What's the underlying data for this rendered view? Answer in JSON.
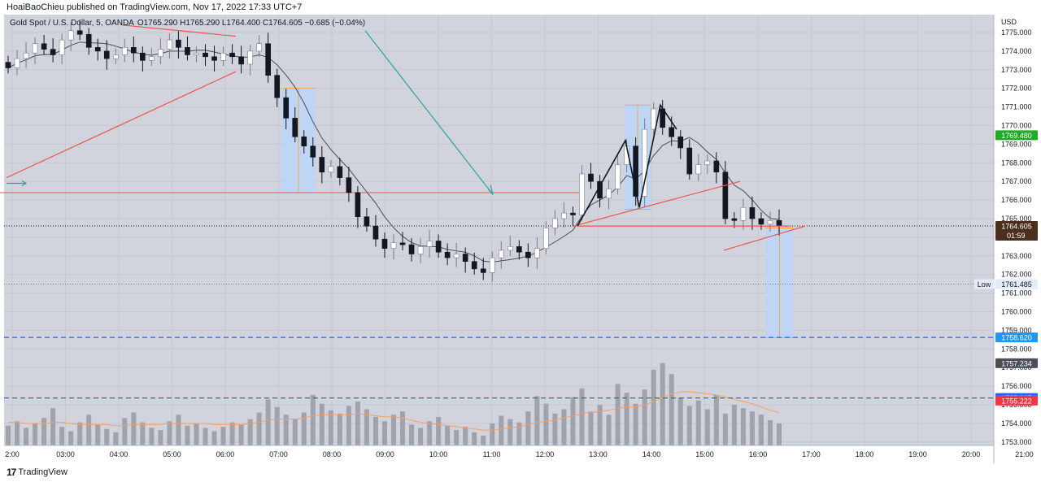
{
  "header": {
    "published": "HoaiBaoChieu published on TradingView.com, Nov 17, 2022 17:33 UTC+7"
  },
  "legend": {
    "symbol": "Gold Spot / U.S. Dollar, 5, OANDA",
    "ohlc": "O1765.290 H1765.290 L1764.400 C1764.605 −0.685 (−0.04%)"
  },
  "footer": {
    "brand": "TradingView",
    "logo": "tradingview-logo-icon"
  },
  "colors": {
    "plot_bg": "#d1d4dc",
    "candle": "#131722",
    "volume": "#a0a3ab",
    "ma_price": "#4a4d55",
    "ma_volume": "#f5a061",
    "red_line": "#ef5350",
    "teal_line": "#26a69a",
    "blue_dashed": "#2962ff",
    "box_fill": "#bbd6f5",
    "box_line": "#f2a64a"
  },
  "chart_data": {
    "type": "candlestick",
    "y_unit": "USD",
    "ylim": [
      1752.5,
      1775.6
    ],
    "y_ticks": [
      "1775.000",
      "1774.000",
      "1773.000",
      "1772.000",
      "1771.000",
      "1770.000",
      "1769.000",
      "1768.000",
      "1767.000",
      "1766.000",
      "1765.000",
      "1764.000",
      "1763.000",
      "1762.000",
      "1761.000",
      "1760.000",
      "1759.000",
      "1758.000",
      "1757.000",
      "1756.000",
      "1755.000",
      "1754.000",
      "1753.000"
    ],
    "x_ticks": [
      "2:00",
      "03:00",
      "04:00",
      "05:00",
      "06:00",
      "07:00",
      "08:00",
      "09:00",
      "10:00",
      "11:00",
      "12:00",
      "13:00",
      "14:00",
      "15:00",
      "16:00",
      "17:00",
      "18:00",
      "19:00",
      "20:00",
      "21:00"
    ],
    "close_path": [
      1773.1,
      1773.6,
      1773.9,
      1774.4,
      1774.1,
      1773.8,
      1774.6,
      1775.1,
      1774.9,
      1774.2,
      1774.0,
      1773.6,
      1773.8,
      1774.2,
      1773.9,
      1773.5,
      1773.7,
      1774.1,
      1774.6,
      1774.2,
      1773.8,
      1773.9,
      1773.7,
      1773.5,
      1773.9,
      1773.7,
      1773.3,
      1774.0,
      1774.4,
      1772.7,
      1771.5,
      1770.4,
      1769.4,
      1768.9,
      1768.3,
      1767.5,
      1767.8,
      1767.2,
      1766.4,
      1765.1,
      1764.6,
      1763.9,
      1763.4,
      1763.7,
      1763.6,
      1763.1,
      1763.5,
      1763.8,
      1763.2,
      1762.9,
      1763.1,
      1762.7,
      1762.3,
      1762.1,
      1762.9,
      1763.3,
      1763.5,
      1763.2,
      1762.9,
      1763.4,
      1764.5,
      1765.0,
      1765.3,
      1765.2,
      1767.4,
      1767.0,
      1766.1,
      1766.6,
      1767.9,
      1768.9,
      1766.2,
      1769.8,
      1770.9,
      1769.9,
      1769.4,
      1768.8,
      1767.4,
      1767.9,
      1768.1,
      1767.5,
      1765.0,
      1764.9,
      1765.6,
      1765.0,
      1764.7,
      1764.9,
      1764.6
    ],
    "volume": {
      "ylim": [
        0,
        100
      ],
      "values": [
        18,
        22,
        16,
        20,
        25,
        34,
        17,
        13,
        21,
        28,
        19,
        15,
        12,
        25,
        30,
        21,
        16,
        14,
        22,
        28,
        18,
        20,
        16,
        13,
        17,
        21,
        19,
        24,
        30,
        42,
        35,
        28,
        24,
        30,
        46,
        38,
        32,
        29,
        36,
        40,
        33,
        26,
        22,
        28,
        31,
        19,
        16,
        22,
        26,
        18,
        14,
        17,
        12,
        9,
        20,
        27,
        24,
        21,
        31,
        45,
        38,
        29,
        33,
        44,
        52,
        31,
        37,
        28,
        56,
        48,
        38,
        51,
        69,
        75,
        65,
        43,
        36,
        41,
        33,
        46,
        29,
        37,
        34,
        31,
        28,
        23,
        20
      ],
      "ma_values": [
        21,
        21,
        20,
        20,
        20,
        21,
        21,
        20,
        19,
        19,
        19,
        19,
        18,
        18,
        19,
        19,
        19,
        19,
        20,
        20,
        20,
        20,
        20,
        19,
        19,
        19,
        19,
        20,
        21,
        23,
        24,
        24,
        24,
        25,
        27,
        28,
        28,
        28,
        28,
        29,
        28,
        27,
        26,
        26,
        25,
        23,
        21,
        20,
        19,
        18,
        17,
        16,
        15,
        14,
        14,
        15,
        16,
        17,
        19,
        21,
        22,
        23,
        25,
        27,
        29,
        30,
        31,
        32,
        34,
        35,
        35,
        37,
        40,
        44,
        47,
        49,
        49,
        48,
        47,
        46,
        44,
        42,
        40,
        38,
        35,
        32,
        30
      ]
    },
    "price_labels": [
      {
        "label": "1769.480",
        "value": 1769.48,
        "color": "#22ab24"
      },
      {
        "label": "1764.605",
        "value": 1764.605,
        "color": "#4b2e1b",
        "sub": "01:59"
      },
      {
        "label": "1761.485",
        "value": 1761.485,
        "tag": "Low",
        "color": "#e4ecf8"
      },
      {
        "label": "1758.620",
        "value": 1758.62,
        "color": "#2196f3"
      },
      {
        "label": "1757.234",
        "value": 1757.234,
        "color": "#4c4f57"
      },
      {
        "label": "1755.367",
        "value": 1755.367,
        "color": "#2962ff"
      },
      {
        "label": "1755.222",
        "value": 1755.222,
        "color": "#f23645"
      }
    ],
    "horizontal_lines": [
      {
        "name": "red-level",
        "value": 1766.4,
        "x_from": 0,
        "x_to": 715
      },
      {
        "name": "last-price",
        "value": 1764.605,
        "style": "dotted"
      },
      {
        "name": "low",
        "value": 1761.485,
        "style": "dotted"
      },
      {
        "name": "target-1758",
        "value": 1758.62,
        "style": "dashed"
      },
      {
        "name": "target-1755",
        "value": 1755.367,
        "style": "dashed"
      }
    ]
  }
}
